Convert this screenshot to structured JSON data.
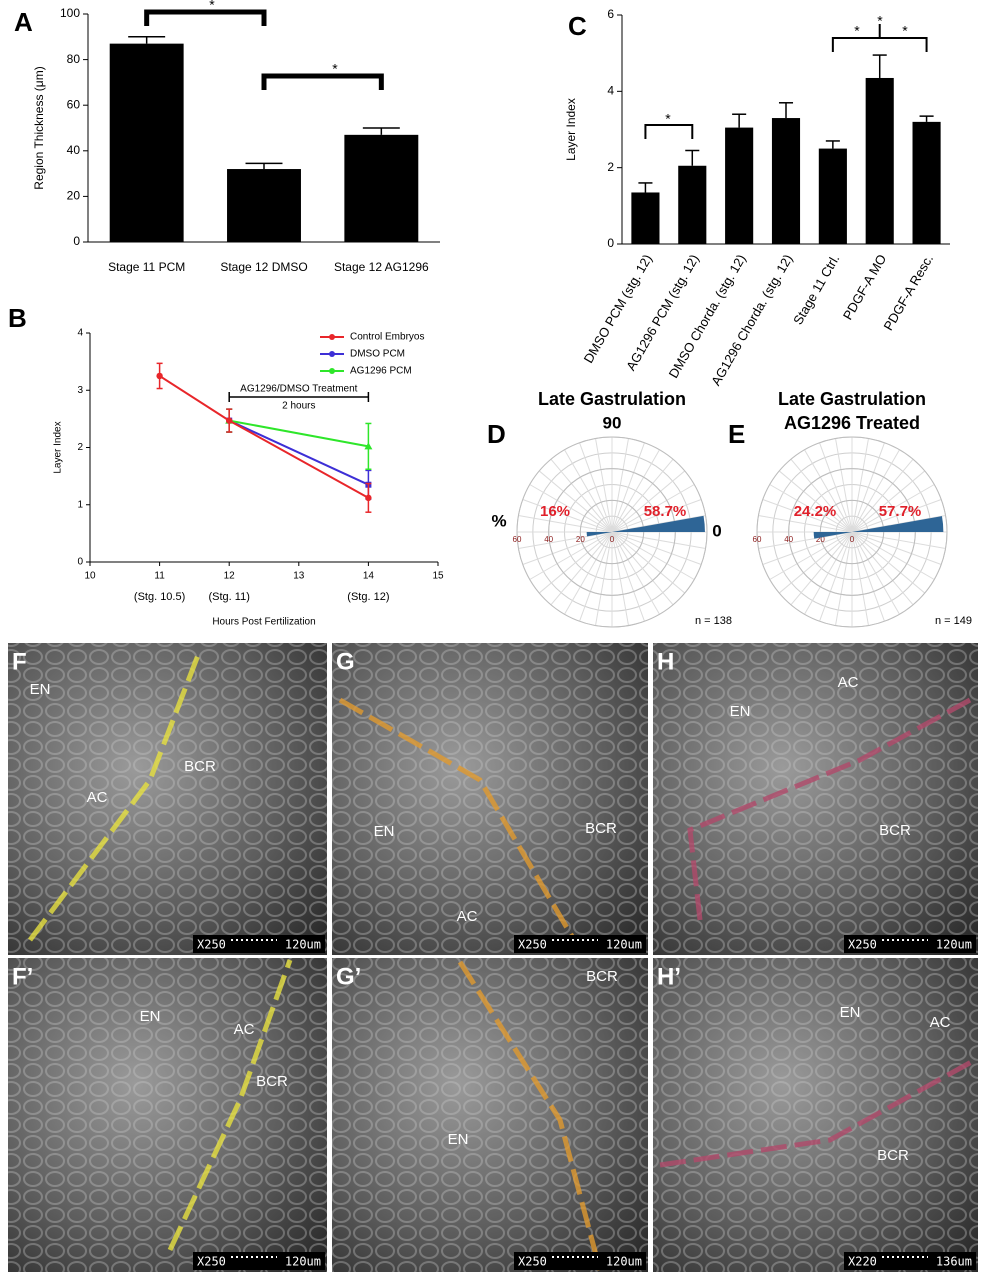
{
  "chart_data": [
    {
      "type": "bar",
      "panel": "A",
      "ylabel": "Region Thickness (μm)",
      "categories": [
        "Stage 11 PCM",
        "Stage 12 DMSO",
        "Stage 12 AG1296"
      ],
      "values": [
        87,
        32,
        47
      ],
      "errors": [
        3,
        2.5,
        3
      ],
      "color": "#000000",
      "ylim": [
        0,
        100
      ],
      "yticks": [
        0,
        20,
        40,
        60,
        80,
        100
      ],
      "annotations": [
        "*",
        "*"
      ]
    },
    {
      "type": "bar",
      "panel": "C",
      "ylabel": "Layer Index",
      "categories": [
        "DMSO PCM (stg. 12)",
        "AG1296 PCM (stg. 12)",
        "DMSO Chorda. (stg. 12)",
        "AG1296 Chorda. (stg. 12)",
        "Stage 11 Ctrl.",
        "PDGF-A MO",
        "PDGF-A Resc."
      ],
      "values": [
        1.35,
        2.05,
        3.05,
        3.3,
        2.5,
        4.35,
        3.2
      ],
      "errors": [
        0.25,
        0.4,
        0.35,
        0.4,
        0.2,
        0.6,
        0.15
      ],
      "color": "#000000",
      "ylim": [
        0,
        6
      ],
      "yticks": [
        0,
        2,
        4,
        6
      ],
      "annotations": [
        "*",
        "*",
        "*",
        "*"
      ]
    },
    {
      "type": "line",
      "panel": "B",
      "ylabel": "Layer Index",
      "xlabel": "Hours Post Fertilization",
      "x": [
        11,
        12,
        14
      ],
      "series": [
        {
          "name": "Control Embryos",
          "color": "#e8262a",
          "values": [
            3.25,
            2.47,
            1.12
          ],
          "errors": [
            0.22,
            0.2,
            0.25
          ]
        },
        {
          "name": "DMSO PCM",
          "color": "#3d2fd6",
          "values": [
            null,
            2.47,
            1.35
          ],
          "errors": [
            null,
            0.2,
            0.25
          ]
        },
        {
          "name": "AG1296 PCM",
          "color": "#2ee62a",
          "values": [
            null,
            2.47,
            2.02
          ],
          "errors": [
            null,
            0.2,
            0.4
          ]
        }
      ],
      "xlim": [
        10,
        15
      ],
      "xticks": [
        10,
        11,
        12,
        13,
        14,
        15
      ],
      "ylim": [
        0,
        4
      ],
      "yticks": [
        0,
        1,
        2,
        3,
        4
      ],
      "stage_labels": [
        "(Stg. 10.5)",
        "(Stg. 11)",
        "(Stg. 12)"
      ],
      "annotations": [
        "AG1296/DMSO Treatment",
        "2 hours"
      ],
      "legend": "upper right"
    },
    {
      "type": "polar",
      "panel": "D",
      "title": [
        "Late Gastrulation"
      ],
      "angle_labels": [
        "90",
        "0"
      ],
      "radial_label": "%",
      "values": [
        58.7,
        16
      ],
      "value_labels": [
        "58.7%",
        "16%"
      ],
      "angles": [
        0,
        180
      ],
      "color": "#2e6596",
      "rlim": [
        0,
        60
      ],
      "rticks": [
        60,
        40,
        20,
        0
      ],
      "n_label": "n = 138"
    },
    {
      "type": "polar",
      "panel": "E",
      "title": [
        "Late Gastrulation",
        "AG1296 Treated"
      ],
      "values": [
        57.7,
        24.2
      ],
      "value_labels": [
        "57.7%",
        "24.2%"
      ],
      "angles": [
        0,
        180
      ],
      "color": "#2e6596",
      "rlim": [
        0,
        60
      ],
      "rticks": [
        60,
        40,
        20,
        0
      ],
      "n_label": "n = 149"
    }
  ],
  "images": [
    {
      "panel": "F",
      "texts": [
        "EN",
        "AC",
        "BCR"
      ],
      "scale": [
        "X250",
        "120um"
      ]
    },
    {
      "panel": "G",
      "texts": [
        "EN",
        "AC",
        "BCR"
      ],
      "scale": [
        "X250",
        "120um"
      ]
    },
    {
      "panel": "H",
      "texts": [
        "AC",
        "EN",
        "BCR"
      ],
      "scale": [
        "X250",
        "120um"
      ]
    },
    {
      "panel": "F’",
      "texts": [
        "EN",
        "AC",
        "BCR"
      ],
      "scale": [
        "X250",
        "120um"
      ]
    },
    {
      "panel": "G’",
      "texts": [
        "BCR",
        "EN"
      ],
      "scale": [
        "X250",
        "120um"
      ]
    },
    {
      "panel": "H’",
      "texts": [
        "EN",
        "AC",
        "BCR"
      ],
      "scale": [
        "X220",
        "136um"
      ]
    }
  ]
}
